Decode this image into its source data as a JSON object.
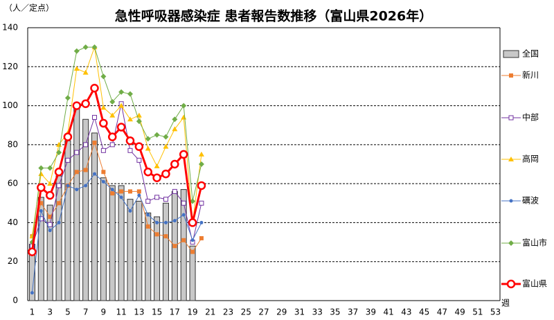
{
  "chart_data": {
    "type": "combo",
    "title": "急性呼吸器感染症 患者報告数推移（富山県2026年）",
    "y_label": "（人／定点）",
    "x_label": "週",
    "categories": [
      "1",
      null,
      "3",
      null,
      "5",
      null,
      "7",
      null,
      "9",
      null,
      "11",
      null,
      "13",
      null,
      "15",
      null,
      "17",
      null,
      "19",
      null,
      "21",
      null,
      "23",
      null,
      "25",
      null,
      "27",
      null,
      "29",
      null,
      "31",
      null,
      "33",
      null,
      "35",
      null,
      "37",
      null,
      "39",
      null,
      "41",
      null,
      "43",
      null,
      "45",
      null,
      "47",
      null,
      "49",
      null,
      "51",
      null,
      "53"
    ],
    "ylim": [
      0,
      140
    ],
    "yticks": [
      0,
      20,
      40,
      60,
      80,
      100,
      120,
      140
    ],
    "grid": true,
    "series": [
      {
        "name": "全国",
        "type": "bar",
        "color": "#c8c8c8",
        "values": [
          29,
          53,
          49,
          64,
          82,
          101,
          93,
          86,
          63,
          59,
          59,
          52,
          51,
          45,
          43,
          50,
          56,
          57,
          28,
          null,
          null,
          null,
          null,
          null,
          null,
          null,
          null,
          null,
          null,
          null,
          null,
          null,
          null,
          null,
          null,
          null,
          null,
          null,
          null,
          null,
          null,
          null,
          null,
          null,
          null,
          null,
          null,
          null,
          null,
          null,
          null,
          null,
          null
        ]
      },
      {
        "name": "新川",
        "type": "line",
        "marker": "square",
        "color": "#ed7d31",
        "values": [
          33,
          50,
          43,
          50,
          59,
          66,
          67,
          81,
          66,
          55,
          56,
          56,
          56,
          38,
          34,
          33,
          28,
          31,
          25,
          32,
          null,
          null,
          null,
          null,
          null,
          null,
          null,
          null,
          null,
          null,
          null,
          null,
          null,
          null,
          null,
          null,
          null,
          null,
          null,
          null,
          null,
          null,
          null,
          null,
          null,
          null,
          null,
          null,
          null,
          null,
          null,
          null,
          null
        ]
      },
      {
        "name": "中部",
        "type": "line",
        "marker": "open-square",
        "color": "#7030a0",
        "values": [
          28,
          42,
          39,
          59,
          72,
          76,
          80,
          94,
          77,
          80,
          101,
          77,
          72,
          51,
          53,
          52,
          56,
          50,
          30,
          50,
          null,
          null,
          null,
          null,
          null,
          null,
          null,
          null,
          null,
          null,
          null,
          null,
          null,
          null,
          null,
          null,
          null,
          null,
          null,
          null,
          null,
          null,
          null,
          null,
          null,
          null,
          null,
          null,
          null,
          null,
          null,
          null,
          null
        ]
      },
      {
        "name": "高岡",
        "type": "line",
        "marker": "triangle",
        "color": "#ffc000",
        "values": [
          33,
          65,
          60,
          80,
          86,
          119,
          117,
          130,
          99,
          95,
          100,
          93,
          95,
          78,
          69,
          79,
          88,
          94,
          40,
          75,
          null,
          null,
          null,
          null,
          null,
          null,
          null,
          null,
          null,
          null,
          null,
          null,
          null,
          null,
          null,
          null,
          null,
          null,
          null,
          null,
          null,
          null,
          null,
          null,
          null,
          null,
          null,
          null,
          null,
          null,
          null,
          null,
          null
        ]
      },
      {
        "name": "礪波",
        "type": "line",
        "marker": "circle",
        "color": "#4472c4",
        "values": [
          4,
          46,
          36,
          40,
          59,
          57,
          59,
          65,
          61,
          57,
          53,
          46,
          54,
          44,
          40,
          40,
          41,
          44,
          31,
          40,
          null,
          null,
          null,
          null,
          null,
          null,
          null,
          null,
          null,
          null,
          null,
          null,
          null,
          null,
          null,
          null,
          null,
          null,
          null,
          null,
          null,
          null,
          null,
          null,
          null,
          null,
          null,
          null,
          null,
          null,
          null,
          null,
          null
        ]
      },
      {
        "name": "富山市",
        "type": "line",
        "marker": "diamond",
        "color": "#70ad47",
        "values": [
          30,
          68,
          68,
          76,
          104,
          128,
          130,
          130,
          115,
          102,
          107,
          106,
          92,
          83,
          85,
          84,
          93,
          100,
          51,
          70,
          null,
          null,
          null,
          null,
          null,
          null,
          null,
          null,
          null,
          null,
          null,
          null,
          null,
          null,
          null,
          null,
          null,
          null,
          null,
          null,
          null,
          null,
          null,
          null,
          null,
          null,
          null,
          null,
          null,
          null,
          null,
          null,
          null
        ]
      },
      {
        "name": "富山県",
        "type": "line",
        "marker": "big-circle",
        "color": "#ff0000",
        "values": [
          25,
          58,
          54,
          66,
          84,
          100,
          101,
          109,
          91,
          84,
          89,
          82,
          79,
          66,
          63,
          65,
          70,
          75,
          40,
          59,
          null,
          null,
          null,
          null,
          null,
          null,
          null,
          null,
          null,
          null,
          null,
          null,
          null,
          null,
          null,
          null,
          null,
          null,
          null,
          null,
          null,
          null,
          null,
          null,
          null,
          null,
          null,
          null,
          null,
          null,
          null,
          null,
          null
        ]
      }
    ]
  }
}
